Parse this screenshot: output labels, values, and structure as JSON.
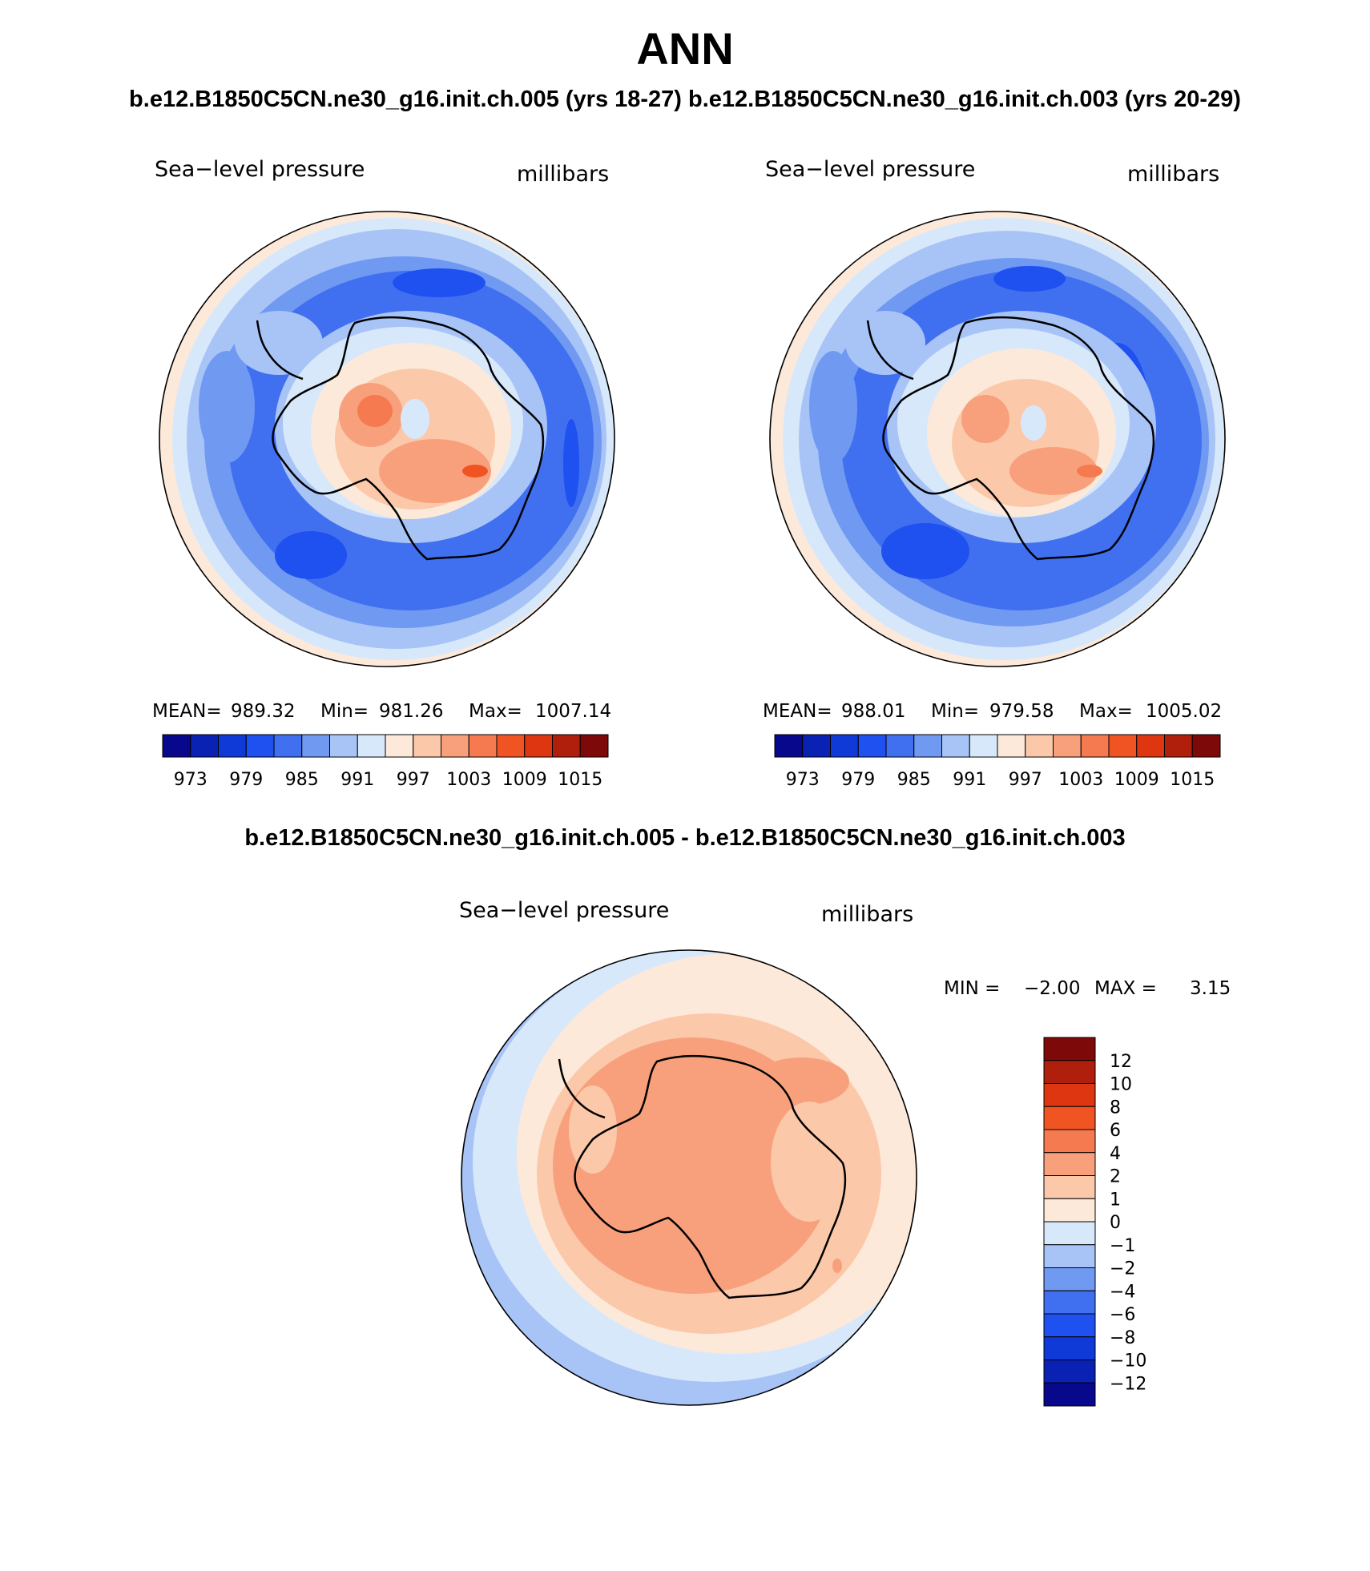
{
  "page": {
    "title": "ANN",
    "header": "b.e12.B1850C5CN.ne30_g16.init.ch.005 (yrs 18-27) b.e12.B1850C5CN.ne30_g16.init.ch.003 (yrs 20-29)",
    "diff_header": "b.e12.B1850C5CN.ne30_g16.init.ch.005 - b.e12.B1850C5CN.ne30_g16.init.ch.003"
  },
  "colors": {
    "field_palette": [
      "#08088c",
      "#0a22b4",
      "#0f3ad8",
      "#1f50f0",
      "#4070f0",
      "#7099f2",
      "#a8c4f7",
      "#d8e8fb",
      "#fde9d9",
      "#fbc8aa",
      "#f8a07c",
      "#f57a4f",
      "#f15423",
      "#dd3610",
      "#b01e0c",
      "#7d0a08"
    ],
    "diff_palette": [
      "#08088c",
      "#0a22b4",
      "#0f3ad8",
      "#1f50f0",
      "#4070f0",
      "#7099f2",
      "#a8c4f7",
      "#d8e8fb",
      "#fde9d9",
      "#fbc8aa",
      "#f8a07c",
      "#f57a4f",
      "#f15423",
      "#dd3610",
      "#b01e0c",
      "#7d0a08"
    ],
    "coastline": "#000000"
  },
  "chart_data": [
    {
      "type": "contour_map",
      "projection": "south-polar-stereographic",
      "title": "Sea−level pressure",
      "units": "millibars",
      "stats": {
        "mean_label": "MEAN=",
        "mean": "989.32",
        "min_label": "Min=",
        "min": "981.26",
        "max_label": "Max=",
        "max": "1007.14"
      },
      "colorbar": {
        "orientation": "horizontal",
        "levels": [
          970,
          973,
          976,
          979,
          982,
          985,
          988,
          991,
          994,
          997,
          1000,
          1003,
          1006,
          1009,
          1012,
          1015
        ],
        "tick_labels": [
          "973",
          "979",
          "985",
          "991",
          "997",
          "1003",
          "1009",
          "1015"
        ]
      }
    },
    {
      "type": "contour_map",
      "projection": "south-polar-stereographic",
      "title": "Sea−level pressure",
      "units": "millibars",
      "stats": {
        "mean_label": "MEAN=",
        "mean": "988.01",
        "min_label": "Min=",
        "min": "979.58",
        "max_label": "Max=",
        "max": "1005.02"
      },
      "colorbar": {
        "orientation": "horizontal",
        "levels": [
          970,
          973,
          976,
          979,
          982,
          985,
          988,
          991,
          994,
          997,
          1000,
          1003,
          1006,
          1009,
          1012,
          1015
        ],
        "tick_labels": [
          "973",
          "979",
          "985",
          "991",
          "997",
          "1003",
          "1009",
          "1015"
        ]
      }
    },
    {
      "type": "contour_map",
      "projection": "south-polar-stereographic",
      "title": "Sea−level pressure",
      "units": "millibars",
      "stats": {
        "min_label": "MIN =",
        "min": "−2.00",
        "max_label": "MAX =",
        "max": "3.15"
      },
      "colorbar": {
        "orientation": "vertical",
        "tick_labels": [
          "12",
          "10",
          "8",
          "6",
          "4",
          "2",
          "1",
          "0",
          "−1",
          "−2",
          "−4",
          "−6",
          "−8",
          "−10",
          "−12"
        ]
      }
    }
  ]
}
